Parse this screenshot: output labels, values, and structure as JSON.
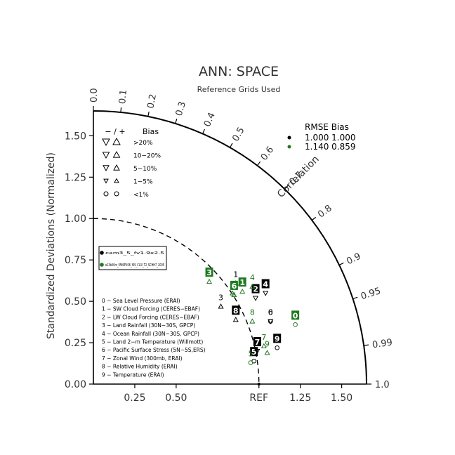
{
  "chart_data": {
    "type": "scatter",
    "subtype": "taylor-diagram",
    "title": "ANN: SPACE",
    "subtitle": "Reference Grids Used",
    "ylabel": "Standardized Deviations (Normalized)",
    "arc_label": "Correlation",
    "ref_label": "REF",
    "std_range": [
      0,
      1.65
    ],
    "x_ticks": [
      "0.25",
      "0.50",
      "REF",
      "1.25",
      "1.50"
    ],
    "x_tick_values": [
      0.25,
      0.5,
      1.0,
      1.25,
      1.5
    ],
    "y_ticks": [
      "0.00",
      "0.25",
      "0.50",
      "0.75",
      "1.00",
      "1.25",
      "1.50"
    ],
    "y_tick_values": [
      0,
      0.25,
      0.5,
      0.75,
      1.0,
      1.25,
      1.5
    ],
    "corr_ticks": [
      "0.0",
      "0.1",
      "0.2",
      "0.3",
      "0.4",
      "0.5",
      "0.6",
      "0.7",
      "0.8",
      "0.9",
      "0.95",
      "0.99",
      "1.0"
    ],
    "corr_tick_values": [
      0.0,
      0.1,
      0.2,
      0.3,
      0.4,
      0.5,
      0.6,
      0.7,
      0.8,
      0.9,
      0.95,
      0.99,
      1.0
    ],
    "colors": {
      "case1": "#000000",
      "case2": "#1f7a1f",
      "axis": "#000000"
    },
    "legend_rmse": {
      "header": "RMSE  Bias",
      "rows": [
        {
          "values": "1.000 1.000",
          "color": "#000000"
        },
        {
          "values": "1.140 0.859",
          "color": "#1f7a1f"
        }
      ]
    },
    "legend_bias": {
      "header_sign": "− / +",
      "header_label": "Bias",
      "rows": [
        ">20%",
        "10−20%",
        "5−10%",
        "1−5%",
        "<1%"
      ]
    },
    "legend_cases": {
      "items": [
        {
          "label": "cam3_5_fv1.9x2.5",
          "color": "#000000"
        },
        {
          "label": "e13b06m_FAMIPX06_f09_CL3l_T2_SCHH7_2005",
          "color": "#1f7a1f"
        }
      ]
    },
    "variables": [
      "0 − Sea Level Pressure (ERAI)",
      "1 − SW Cloud Forcing (CERES−EBAF)",
      "2 − LW Cloud Forcing (CERES−EBAF)",
      "3 − Land Rainfall (30N−30S, GPCP)",
      "4 − Ocean Rainfall (30N−30S, GPCP)",
      "5 − Land 2−m Temperature (Willmott)",
      "6 − Pacific Surface Stress (5N−5S,ERS)",
      "7 − Zonal Wind (300mb, ERAI)",
      "8 − Relative Humidity (ERAI)",
      "9 − Temperature (ERAI)"
    ],
    "series": [
      {
        "name": "cam3_5_fv1.9x2.5",
        "color": "#000000",
        "points": [
          {
            "label": "0",
            "x": 1.07,
            "y": 0.43,
            "boxed": false,
            "marker": "circle"
          },
          {
            "label": "1",
            "x": 0.86,
            "y": 0.66,
            "boxed": false,
            "marker": "tri-up"
          },
          {
            "label": "2",
            "x": 0.98,
            "y": 0.57,
            "boxed": true,
            "marker": "tri-down"
          },
          {
            "label": "3",
            "x": 0.77,
            "y": 0.52,
            "boxed": false,
            "marker": "tri-up"
          },
          {
            "label": "4",
            "x": 1.04,
            "y": 0.6,
            "boxed": true,
            "marker": "tri-down"
          },
          {
            "label": "5",
            "x": 0.97,
            "y": 0.19,
            "boxed": true,
            "marker": "circle"
          },
          {
            "label": "6",
            "x": 1.07,
            "y": 0.43,
            "boxed": false,
            "marker": "tri-down"
          },
          {
            "label": "7",
            "x": 0.99,
            "y": 0.25,
            "boxed": true,
            "marker": "tri-down"
          },
          {
            "label": "8",
            "x": 0.86,
            "y": 0.44,
            "boxed": true,
            "marker": "tri-up"
          },
          {
            "label": "9",
            "x": 1.11,
            "y": 0.27,
            "boxed": true,
            "marker": "circle"
          }
        ]
      },
      {
        "name": "e13b06m_FAMIPX06_f09_CL3l_T2_SCHH7_2005",
        "color": "#1f7a1f",
        "points": [
          {
            "label": "0",
            "x": 1.22,
            "y": 0.41,
            "boxed": true,
            "marker": "circle"
          },
          {
            "label": "1",
            "x": 0.9,
            "y": 0.61,
            "boxed": true,
            "marker": "tri-up"
          },
          {
            "label": "2",
            "x": 0.84,
            "y": 0.6,
            "boxed": false,
            "marker": "tri-up"
          },
          {
            "label": "3",
            "x": 0.7,
            "y": 0.67,
            "boxed": true,
            "marker": "tri-up"
          },
          {
            "label": "4",
            "x": 0.96,
            "y": 0.64,
            "boxed": false,
            "marker": "tri-up"
          },
          {
            "label": "5",
            "x": 0.95,
            "y": 0.18,
            "boxed": false,
            "marker": "circle"
          },
          {
            "label": "6",
            "x": 0.85,
            "y": 0.59,
            "boxed": true,
            "marker": "tri-up"
          },
          {
            "label": "7",
            "x": 1.03,
            "y": 0.28,
            "boxed": false,
            "marker": "tri-up"
          },
          {
            "label": "8",
            "x": 0.96,
            "y": 0.43,
            "boxed": false,
            "marker": "tri-up"
          },
          {
            "label": "9",
            "x": 1.05,
            "y": 0.24,
            "boxed": false,
            "marker": "tri-up"
          }
        ]
      }
    ]
  }
}
